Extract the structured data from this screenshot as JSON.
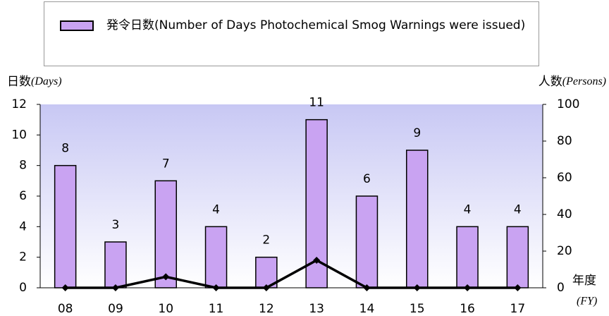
{
  "chart_data": {
    "type": "bar_line",
    "categories": [
      "08",
      "09",
      "10",
      "11",
      "12",
      "13",
      "14",
      "15",
      "16",
      "17"
    ],
    "series": [
      {
        "name": "発令日数(Number of Days Photochemical Smog Warnings were issued)",
        "type": "bar",
        "color": "#c9a3f2",
        "values": [
          8,
          3,
          7,
          4,
          2,
          11,
          6,
          9,
          4,
          4
        ]
      },
      {
        "type": "line",
        "axis": "y2",
        "color": "#000000",
        "values": [
          0,
          0,
          6,
          0,
          0,
          15,
          0,
          0,
          0,
          0
        ]
      }
    ],
    "y_label": "日数",
    "y_label_en": "(Days)",
    "y2_label": "人数",
    "y2_label_en": "(Persons)",
    "x_label": "年度",
    "x_label_en": "(FY)",
    "ylim": [
      0,
      12
    ],
    "yticks": [
      0,
      2,
      4,
      6,
      8,
      10,
      12
    ],
    "y2lim": [
      0,
      100
    ],
    "y2ticks": [
      0,
      20,
      40,
      60,
      80,
      100
    ],
    "legend": "top"
  }
}
